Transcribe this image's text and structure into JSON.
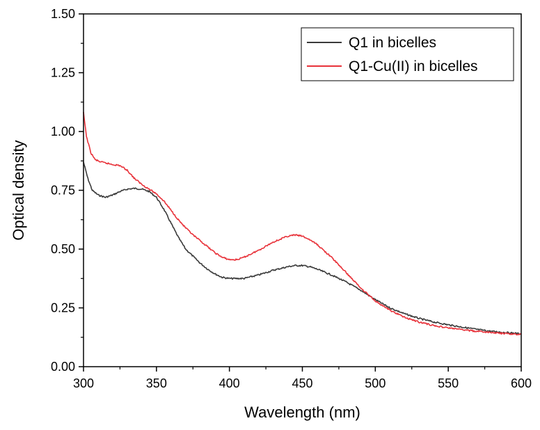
{
  "chart_data": {
    "type": "line",
    "title": "",
    "xlabel": "Wavelength (nm)",
    "ylabel": "Optical density",
    "xlim": [
      300,
      600
    ],
    "ylim": [
      0.0,
      1.5
    ],
    "xticks": [
      300,
      350,
      400,
      450,
      500,
      550,
      600
    ],
    "xtick_labels": [
      "300",
      "350",
      "400",
      "450",
      "500",
      "550",
      "600"
    ],
    "yticks": [
      0.0,
      0.25,
      0.5,
      0.75,
      1.0,
      1.25,
      1.5
    ],
    "ytick_labels": [
      "0.00",
      "0.25",
      "0.50",
      "0.75",
      "1.00",
      "1.25",
      "1.50"
    ],
    "grid": false,
    "legend": {
      "position": "top-right"
    },
    "series": [
      {
        "name": "Q1 in bicelles",
        "color": "#3a3a3a",
        "x": [
          300,
          303,
          306,
          310,
          315,
          320,
          325,
          330,
          335,
          340,
          345,
          350,
          355,
          360,
          365,
          370,
          375,
          380,
          385,
          390,
          395,
          400,
          410,
          420,
          430,
          440,
          445,
          450,
          455,
          460,
          470,
          480,
          490,
          500,
          510,
          520,
          530,
          540,
          550,
          560,
          570,
          580,
          590,
          600
        ],
        "y": [
          0.87,
          0.8,
          0.75,
          0.73,
          0.72,
          0.73,
          0.745,
          0.755,
          0.758,
          0.755,
          0.745,
          0.72,
          0.67,
          0.61,
          0.55,
          0.5,
          0.47,
          0.44,
          0.415,
          0.395,
          0.38,
          0.375,
          0.375,
          0.39,
          0.41,
          0.425,
          0.43,
          0.43,
          0.425,
          0.415,
          0.39,
          0.36,
          0.325,
          0.285,
          0.25,
          0.225,
          0.205,
          0.19,
          0.178,
          0.168,
          0.158,
          0.15,
          0.145,
          0.14
        ]
      },
      {
        "name": "Q1-Cu(II) in bicelles",
        "color": "#e8323a",
        "x": [
          300,
          302,
          305,
          308,
          312,
          316,
          320,
          325,
          330,
          335,
          340,
          345,
          350,
          355,
          360,
          365,
          370,
          375,
          380,
          385,
          390,
          395,
          400,
          405,
          410,
          420,
          430,
          440,
          445,
          450,
          455,
          460,
          470,
          480,
          490,
          500,
          510,
          520,
          530,
          540,
          550,
          560,
          570,
          580,
          590,
          600
        ],
        "y": [
          1.08,
          0.98,
          0.91,
          0.88,
          0.87,
          0.865,
          0.86,
          0.855,
          0.835,
          0.8,
          0.775,
          0.755,
          0.735,
          0.705,
          0.665,
          0.625,
          0.59,
          0.56,
          0.535,
          0.51,
          0.485,
          0.465,
          0.455,
          0.455,
          0.465,
          0.495,
          0.53,
          0.555,
          0.56,
          0.555,
          0.54,
          0.52,
          0.465,
          0.4,
          0.335,
          0.28,
          0.24,
          0.21,
          0.19,
          0.175,
          0.165,
          0.157,
          0.15,
          0.145,
          0.14,
          0.137
        ]
      }
    ]
  }
}
